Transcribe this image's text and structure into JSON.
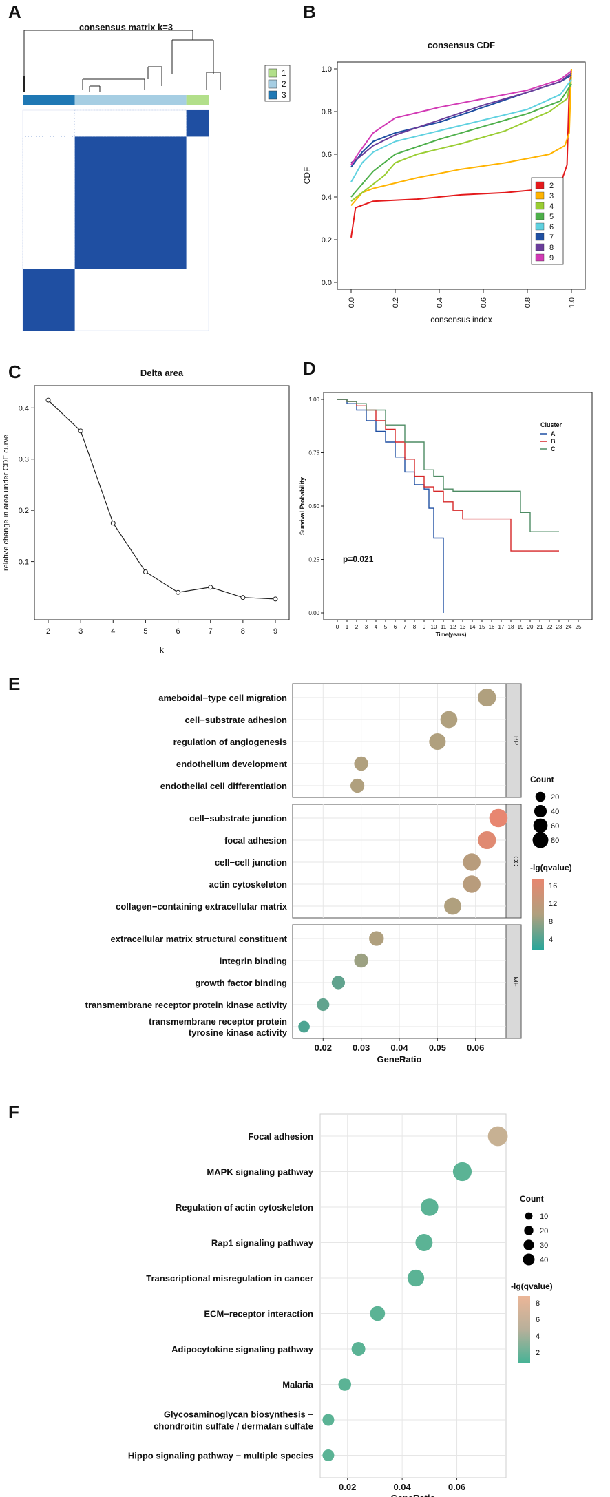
{
  "panels": {
    "a": "A",
    "b": "B",
    "c": "C",
    "d": "D",
    "e": "E",
    "f": "F"
  },
  "colors": {
    "blue": "#1f4fa2",
    "light": "#a6cbe3",
    "mid": "#2b7bb9",
    "green": "#a6d96a",
    "navy": "#153d8a"
  },
  "chart_data": [
    {
      "id": "A",
      "type": "heatmap",
      "title": "consensus matrix k=3",
      "legend": [
        "1",
        "2",
        "3"
      ],
      "legend_colors": [
        "#b2df8a",
        "#a6cee3",
        "#1f78b4"
      ],
      "clusters": [
        {
          "label": "3",
          "size_fraction": 0.28
        },
        {
          "label": "2",
          "size_fraction": 0.6
        },
        {
          "label": "1",
          "size_fraction": 0.12
        }
      ]
    },
    {
      "id": "B",
      "type": "line",
      "title": "consensus CDF",
      "xlabel": "consensus index",
      "ylabel": "CDF",
      "xlim": [
        0,
        1
      ],
      "ylim": [
        0,
        1
      ],
      "xticks": [
        "0.0",
        "0.2",
        "0.4",
        "0.6",
        "0.8",
        "1.0"
      ],
      "yticks": [
        "0.0",
        "0.2",
        "0.4",
        "0.6",
        "0.8",
        "1.0"
      ],
      "series": [
        {
          "name": "2",
          "color": "#e41a1c",
          "points": [
            [
              0,
              0.21
            ],
            [
              0.02,
              0.35
            ],
            [
              0.1,
              0.38
            ],
            [
              0.3,
              0.39
            ],
            [
              0.5,
              0.41
            ],
            [
              0.7,
              0.42
            ],
            [
              0.9,
              0.44
            ],
            [
              0.95,
              0.46
            ],
            [
              0.98,
              0.55
            ],
            [
              0.99,
              0.9
            ],
            [
              1,
              1
            ]
          ]
        },
        {
          "name": "3",
          "color": "#ffb300",
          "points": [
            [
              0,
              0.36
            ],
            [
              0.05,
              0.42
            ],
            [
              0.1,
              0.44
            ],
            [
              0.3,
              0.49
            ],
            [
              0.5,
              0.53
            ],
            [
              0.7,
              0.56
            ],
            [
              0.9,
              0.6
            ],
            [
              0.97,
              0.64
            ],
            [
              0.99,
              0.7
            ],
            [
              1,
              1
            ]
          ]
        },
        {
          "name": "4",
          "color": "#9acd32",
          "points": [
            [
              0,
              0.38
            ],
            [
              0.05,
              0.42
            ],
            [
              0.1,
              0.46
            ],
            [
              0.15,
              0.5
            ],
            [
              0.2,
              0.56
            ],
            [
              0.3,
              0.6
            ],
            [
              0.5,
              0.65
            ],
            [
              0.7,
              0.71
            ],
            [
              0.9,
              0.8
            ],
            [
              0.98,
              0.86
            ],
            [
              1,
              0.96
            ]
          ]
        },
        {
          "name": "5",
          "color": "#4daf4a",
          "points": [
            [
              0,
              0.4
            ],
            [
              0.05,
              0.46
            ],
            [
              0.1,
              0.52
            ],
            [
              0.2,
              0.6
            ],
            [
              0.4,
              0.67
            ],
            [
              0.6,
              0.73
            ],
            [
              0.8,
              0.79
            ],
            [
              0.95,
              0.85
            ],
            [
              1,
              0.93
            ]
          ]
        },
        {
          "name": "6",
          "color": "#5fd1e0",
          "points": [
            [
              0,
              0.47
            ],
            [
              0.05,
              0.56
            ],
            [
              0.1,
              0.61
            ],
            [
              0.2,
              0.66
            ],
            [
              0.4,
              0.71
            ],
            [
              0.6,
              0.76
            ],
            [
              0.8,
              0.81
            ],
            [
              0.95,
              0.88
            ],
            [
              1,
              0.95
            ]
          ]
        },
        {
          "name": "7",
          "color": "#1f4fa2",
          "points": [
            [
              0,
              0.54
            ],
            [
              0.05,
              0.61
            ],
            [
              0.1,
              0.66
            ],
            [
              0.2,
              0.7
            ],
            [
              0.4,
              0.75
            ],
            [
              0.6,
              0.82
            ],
            [
              0.8,
              0.89
            ],
            [
              0.95,
              0.94
            ],
            [
              1,
              0.97
            ]
          ]
        },
        {
          "name": "8",
          "color": "#6a3d9a",
          "points": [
            [
              0,
              0.56
            ],
            [
              0.03,
              0.58
            ],
            [
              0.1,
              0.64
            ],
            [
              0.2,
              0.69
            ],
            [
              0.4,
              0.76
            ],
            [
              0.6,
              0.83
            ],
            [
              0.8,
              0.89
            ],
            [
              0.95,
              0.94
            ],
            [
              1,
              0.98
            ]
          ]
        },
        {
          "name": "9",
          "color": "#d23ab5",
          "points": [
            [
              0,
              0.55
            ],
            [
              0.03,
              0.6
            ],
            [
              0.1,
              0.7
            ],
            [
              0.2,
              0.77
            ],
            [
              0.4,
              0.82
            ],
            [
              0.6,
              0.86
            ],
            [
              0.8,
              0.9
            ],
            [
              0.95,
              0.95
            ],
            [
              1,
              0.99
            ]
          ]
        }
      ]
    },
    {
      "id": "C",
      "type": "line",
      "title": "Delta area",
      "xlabel": "k",
      "ylabel": "relative change in area under CDF curve",
      "x": [
        2,
        3,
        4,
        5,
        6,
        7,
        8,
        9
      ],
      "values": [
        0.415,
        0.355,
        0.175,
        0.08,
        0.04,
        0.05,
        0.03,
        0.027
      ],
      "ylim": [
        0.0,
        0.43
      ],
      "yticks": [
        "0.1",
        "0.2",
        "0.3",
        "0.4"
      ],
      "xticks": [
        "2",
        "3",
        "4",
        "5",
        "6",
        "7",
        "8",
        "9"
      ]
    },
    {
      "id": "D",
      "type": "line",
      "title": "",
      "xlabel": "Time(years)",
      "ylabel": "Survival Probability",
      "annotation": "p=0.021",
      "legend_title": "Cluster",
      "xlim": [
        0,
        25
      ],
      "ylim": [
        0,
        1
      ],
      "xticks": [
        "0",
        "1",
        "2",
        "3",
        "4",
        "5",
        "6",
        "7",
        "8",
        "9",
        "10",
        "11",
        "12",
        "13",
        "14",
        "15",
        "16",
        "17",
        "18",
        "19",
        "20",
        "21",
        "22",
        "23",
        "24",
        "25"
      ],
      "yticks": [
        "0.00",
        "0.25",
        "0.50",
        "0.75",
        "1.00"
      ],
      "series": [
        {
          "name": "A",
          "color": "#1f4fa2",
          "points": [
            [
              0,
              1
            ],
            [
              1,
              0.98
            ],
            [
              2,
              0.95
            ],
            [
              3,
              0.9
            ],
            [
              4,
              0.85
            ],
            [
              5,
              0.8
            ],
            [
              6,
              0.73
            ],
            [
              7,
              0.66
            ],
            [
              8,
              0.6
            ],
            [
              9,
              0.58
            ],
            [
              9.5,
              0.49
            ],
            [
              10,
              0.35
            ],
            [
              11,
              0.35
            ],
            [
              11,
              0
            ]
          ]
        },
        {
          "name": "B",
          "color": "#d62728",
          "points": [
            [
              0,
              1
            ],
            [
              1,
              0.99
            ],
            [
              2,
              0.97
            ],
            [
              3,
              0.95
            ],
            [
              4,
              0.9
            ],
            [
              5,
              0.86
            ],
            [
              6,
              0.8
            ],
            [
              7,
              0.72
            ],
            [
              8,
              0.64
            ],
            [
              9,
              0.59
            ],
            [
              10,
              0.57
            ],
            [
              11,
              0.52
            ],
            [
              12,
              0.48
            ],
            [
              13,
              0.44
            ],
            [
              15,
              0.44
            ],
            [
              17,
              0.44
            ],
            [
              18,
              0.29
            ],
            [
              23,
              0.29
            ]
          ]
        },
        {
          "name": "C",
          "color": "#4d8b63",
          "points": [
            [
              0,
              1
            ],
            [
              1,
              0.99
            ],
            [
              2,
              0.98
            ],
            [
              3,
              0.95
            ],
            [
              5,
              0.88
            ],
            [
              7,
              0.8
            ],
            [
              9,
              0.67
            ],
            [
              10,
              0.64
            ],
            [
              11,
              0.58
            ],
            [
              12,
              0.57
            ],
            [
              14,
              0.57
            ],
            [
              17,
              0.57
            ],
            [
              19,
              0.47
            ],
            [
              20,
              0.38
            ],
            [
              23,
              0.38
            ]
          ]
        }
      ]
    },
    {
      "id": "E",
      "type": "scatter",
      "xlabel": "GeneRatio",
      "xlim": [
        0.012,
        0.068
      ],
      "xticks": [
        "0.02",
        "0.03",
        "0.04",
        "0.05",
        "0.06"
      ],
      "size_legend_title": "Count",
      "size_legend": [
        "20",
        "40",
        "60",
        "80"
      ],
      "color_legend_title": "-lg(qvalue)",
      "color_legend": [
        "16",
        "12",
        "8",
        "4"
      ],
      "facets": [
        {
          "name": "BP",
          "terms": [
            {
              "term": "ameboidal−type cell migration",
              "ratio": 0.063,
              "count": 58,
              "q": 9
            },
            {
              "term": "cell−substrate adhesion",
              "ratio": 0.053,
              "count": 48,
              "q": 9
            },
            {
              "term": "regulation of angiogenesis",
              "ratio": 0.05,
              "count": 45,
              "q": 9
            },
            {
              "term": "endothelium development",
              "ratio": 0.03,
              "count": 27,
              "q": 9
            },
            {
              "term": "endothelial cell differentiation",
              "ratio": 0.029,
              "count": 26,
              "q": 9
            }
          ]
        },
        {
          "name": "CC",
          "terms": [
            {
              "term": "cell−substrate junction",
              "ratio": 0.066,
              "count": 60,
              "q": 16
            },
            {
              "term": "focal adhesion",
              "ratio": 0.063,
              "count": 57,
              "q": 15
            },
            {
              "term": "cell−cell junction",
              "ratio": 0.059,
              "count": 53,
              "q": 10
            },
            {
              "term": "actin cytoskeleton",
              "ratio": 0.059,
              "count": 53,
              "q": 10
            },
            {
              "term": "collagen−containing extracellular matrix",
              "ratio": 0.054,
              "count": 49,
              "q": 9
            }
          ]
        },
        {
          "name": "MF",
          "terms": [
            {
              "term": "extracellular matrix structural constituent",
              "ratio": 0.034,
              "count": 31,
              "q": 9
            },
            {
              "term": "integrin binding",
              "ratio": 0.03,
              "count": 27,
              "q": 8
            },
            {
              "term": "growth factor binding",
              "ratio": 0.024,
              "count": 22,
              "q": 5
            },
            {
              "term": "transmembrane receptor protein kinase activity",
              "ratio": 0.02,
              "count": 18,
              "q": 5
            },
            {
              "term": "transmembrane receptor protein\ntyrosine kinase activity",
              "ratio": 0.015,
              "count": 13,
              "q": 4
            }
          ]
        }
      ]
    },
    {
      "id": "F",
      "type": "scatter",
      "xlabel": "GeneRatio",
      "xlim": [
        0.01,
        0.078
      ],
      "xticks": [
        "0.02",
        "0.04",
        "0.06"
      ],
      "size_legend_title": "Count",
      "size_legend": [
        "10",
        "20",
        "30",
        "40"
      ],
      "color_legend_title": "-lg(qvalue)",
      "color_legend": [
        "8",
        "6",
        "4",
        "2"
      ],
      "terms": [
        {
          "term": "Focal adhesion",
          "ratio": 0.075,
          "count": 42,
          "q": 7
        },
        {
          "term": "MAPK signaling pathway",
          "ratio": 0.062,
          "count": 36,
          "q": 2
        },
        {
          "term": "Regulation of actin cytoskeleton",
          "ratio": 0.05,
          "count": 30,
          "q": 2
        },
        {
          "term": "Rap1 signaling pathway",
          "ratio": 0.048,
          "count": 28,
          "q": 2
        },
        {
          "term": "Transcriptional misregulation in cancer",
          "ratio": 0.045,
          "count": 26,
          "q": 2
        },
        {
          "term": "ECM−receptor interaction",
          "ratio": 0.031,
          "count": 18,
          "q": 2
        },
        {
          "term": "Adipocytokine signaling pathway",
          "ratio": 0.024,
          "count": 14,
          "q": 2
        },
        {
          "term": "Malaria",
          "ratio": 0.019,
          "count": 11,
          "q": 2
        },
        {
          "term": "Glycosaminoglycan biosynthesis −\nchondroitin sulfate / dermatan sulfate",
          "ratio": 0.013,
          "count": 8,
          "q": 2
        },
        {
          "term": "Hippo signaling pathway − multiple species",
          "ratio": 0.013,
          "count": 8,
          "q": 2
        }
      ]
    }
  ]
}
